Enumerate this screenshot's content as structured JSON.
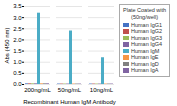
{
  "chart_data": {
    "type": "bar",
    "xlabel": "Recombinant Human IgM Antibody",
    "ylabel": "Abs (450 nm)",
    "categories": [
      "200ng/mL",
      "50ng/mL",
      "10ng/mL"
    ],
    "series": [
      {
        "name": "Human IgG1",
        "color": "#4472c4",
        "values": [
          0.03,
          0.02,
          0.02
        ]
      },
      {
        "name": "Human IgG2",
        "color": "#c0504d",
        "values": [
          0.03,
          0.02,
          0.02
        ]
      },
      {
        "name": "Human IgG3",
        "color": "#9bbb59",
        "values": [
          0.03,
          0.02,
          0.02
        ]
      },
      {
        "name": "Human IgG4",
        "color": "#8064a2",
        "values": [
          0.03,
          0.02,
          0.02
        ]
      },
      {
        "name": "Human IgM",
        "color": "#4bacc6",
        "values": [
          3.2,
          2.4,
          1.2
        ]
      },
      {
        "name": "Human IgE",
        "color": "#f79646",
        "values": [
          0.03,
          0.02,
          0.02
        ]
      },
      {
        "name": "Human IgD",
        "color": "#808080",
        "values": [
          0.03,
          0.02,
          0.02
        ]
      },
      {
        "name": "Human IgA",
        "color": "#8064a2",
        "values": [
          0.03,
          0.02,
          0.02
        ]
      }
    ],
    "legend_title": "Plate Coated with\n(50ng/well)",
    "legend": "right",
    "ylim": [
      0,
      3.5
    ],
    "yticks": [
      0,
      0.5,
      1,
      1.5,
      2,
      2.5,
      3,
      3.5
    ],
    "grid": true
  }
}
